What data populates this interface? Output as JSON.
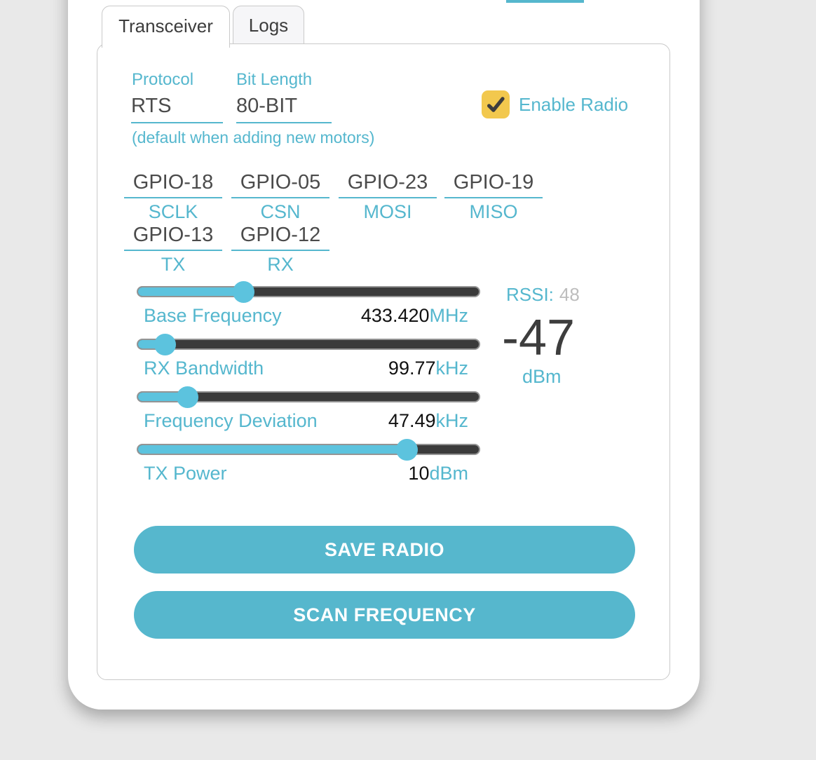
{
  "colors": {
    "accent_teal": "#55b7ce",
    "slider_teal": "#5cc3de",
    "checkbox_yellow": "#f2c84e",
    "track_dark": "#3b3b3b",
    "text_dark": "#3d3d3d",
    "page_background": "#e9e9e9"
  },
  "tabs": [
    {
      "label": "Transceiver",
      "active": true
    },
    {
      "label": "Logs",
      "active": false
    }
  ],
  "protocol": {
    "label": "Protocol",
    "value": "RTS"
  },
  "bit_length": {
    "label": "Bit Length",
    "value": "80-BIT"
  },
  "default_note": "(default when adding new motors)",
  "enable_radio": {
    "label": "Enable Radio",
    "checked": true,
    "icon": "checkmark-icon"
  },
  "gpio": [
    {
      "pin": "GPIO-18",
      "role": "SCLK"
    },
    {
      "pin": "GPIO-05",
      "role": "CSN"
    },
    {
      "pin": "GPIO-23",
      "role": "MOSI"
    },
    {
      "pin": "GPIO-19",
      "role": "MISO"
    },
    {
      "pin": "GPIO-13",
      "role": "TX"
    },
    {
      "pin": "GPIO-12",
      "role": "RX"
    }
  ],
  "sliders": [
    {
      "label": "Base Frequency",
      "value": "433.420",
      "unit": "MHz",
      "percent": 31
    },
    {
      "label": "RX Bandwidth",
      "value": "99.77",
      "unit": "kHz",
      "percent": 8
    },
    {
      "label": "Frequency Deviation",
      "value": "47.49",
      "unit": "kHz",
      "percent": 14.5
    },
    {
      "label": "TX Power",
      "value": "10",
      "unit": "dBm",
      "percent": 79
    }
  ],
  "rssi": {
    "label": "RSSI:",
    "raw": "48",
    "dbm_value": "-47",
    "unit": "dBm"
  },
  "buttons": [
    {
      "label": "SAVE RADIO"
    },
    {
      "label": "SCAN FREQUENCY"
    }
  ]
}
